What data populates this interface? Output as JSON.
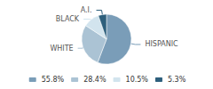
{
  "chart_data": {
    "type": "pie",
    "categories": [
      "HISPANIC",
      "WHITE",
      "BLACK",
      "A.I."
    ],
    "values": [
      55.8,
      28.4,
      10.5,
      5.3
    ],
    "value_labels": [
      "55.8%",
      "28.4%",
      "10.5%",
      "5.3%"
    ],
    "colors": [
      "#7a9db8",
      "#abc3d4",
      "#d2e4ee",
      "#2d5f7c"
    ],
    "legend": "bottom"
  }
}
